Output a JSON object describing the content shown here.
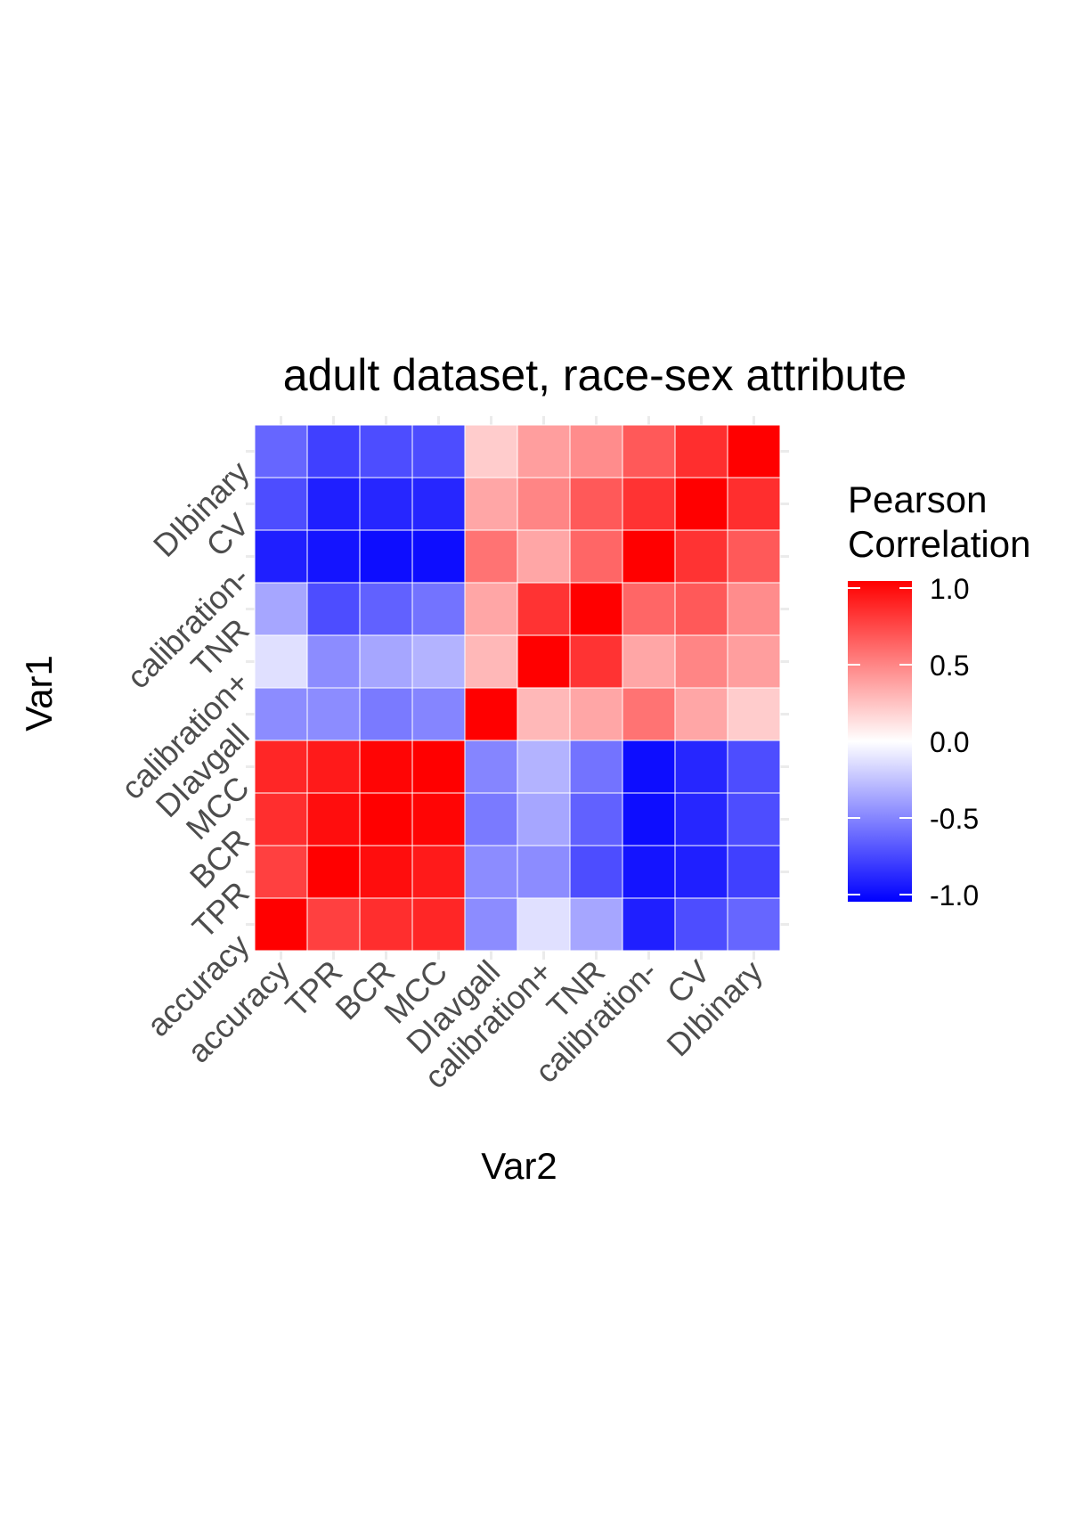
{
  "chart_data": {
    "type": "heatmap",
    "title": "adult dataset, race-sex attribute",
    "xlabel": "Var2",
    "ylabel": "Var1",
    "categories": [
      "accuracy",
      "TPR",
      "BCR",
      "MCC",
      "DIavgall",
      "calibration+",
      "TNR",
      "calibration-",
      "CV",
      "DIbinary"
    ],
    "y_labels_top_to_bottom": [
      "DIbinary",
      "CV",
      "calibration-",
      "TNR",
      "calibration+",
      "DIavgall",
      "MCC",
      "BCR",
      "TPR",
      "accuracy"
    ],
    "values": [
      [
        1.0,
        0.75,
        0.82,
        0.85,
        -0.45,
        -0.12,
        -0.35,
        -0.88,
        -0.7,
        -0.6
      ],
      [
        0.75,
        1.0,
        0.95,
        0.9,
        -0.45,
        -0.45,
        -0.7,
        -0.92,
        -0.88,
        -0.75
      ],
      [
        0.82,
        0.95,
        1.0,
        0.98,
        -0.52,
        -0.35,
        -0.62,
        -0.95,
        -0.85,
        -0.7
      ],
      [
        0.85,
        0.9,
        0.98,
        1.0,
        -0.48,
        -0.3,
        -0.55,
        -0.95,
        -0.85,
        -0.7
      ],
      [
        -0.45,
        -0.45,
        -0.52,
        -0.48,
        1.0,
        0.28,
        0.35,
        0.55,
        0.35,
        0.2
      ],
      [
        -0.12,
        -0.45,
        -0.35,
        -0.3,
        0.28,
        1.0,
        0.8,
        0.35,
        0.48,
        0.38
      ],
      [
        -0.35,
        -0.7,
        -0.62,
        -0.55,
        0.35,
        0.8,
        1.0,
        0.6,
        0.65,
        0.45
      ],
      [
        -0.88,
        -0.92,
        -0.95,
        -0.95,
        0.55,
        0.35,
        0.6,
        1.0,
        0.8,
        0.65
      ],
      [
        -0.7,
        -0.88,
        -0.85,
        -0.85,
        0.35,
        0.48,
        0.65,
        0.8,
        1.0,
        0.82
      ],
      [
        -0.6,
        -0.75,
        -0.7,
        -0.7,
        0.2,
        0.38,
        0.45,
        0.65,
        0.82,
        1.0
      ]
    ],
    "color_scale": {
      "low": "#0000ff",
      "mid": "#ffffff",
      "high": "#ff0000",
      "limits": [
        -1,
        1
      ]
    },
    "legend": {
      "title_lines": [
        "Pearson",
        "Correlation"
      ],
      "ticks": [
        1.0,
        0.5,
        0.0,
        -0.5,
        -1.0
      ],
      "tick_labels": [
        "1.0",
        "0.5",
        "0.0",
        "-0.5",
        "-1.0"
      ],
      "placement": "right"
    },
    "grid": true
  }
}
